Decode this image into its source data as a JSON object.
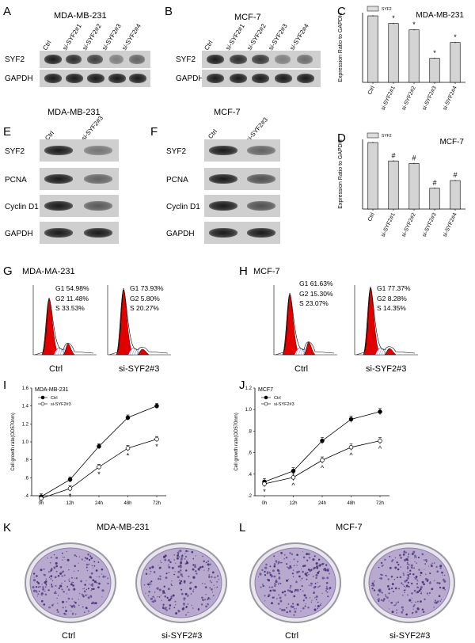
{
  "panels": {
    "A": {
      "letter": "A",
      "title": "MDA-MB-231",
      "lanes": [
        "Ctrl",
        "si-SYF2#1",
        "si-SYF2#2",
        "si-SYF2#3",
        "si-SYF2#4"
      ],
      "rows": [
        "SYF2",
        "GAPDH"
      ]
    },
    "B": {
      "letter": "B",
      "title": "MCF-7",
      "lanes": [
        "Ctrl",
        "si-SYF2#1",
        "si-SYF2#2",
        "si-SYF2#3",
        "si-SYF2#4"
      ],
      "rows": [
        "SYF2",
        "GAPDH"
      ]
    },
    "E": {
      "letter": "E",
      "title": "MDA-MB-231",
      "lanes": [
        "Ctrl",
        "si-SYF2#3"
      ],
      "rows": [
        "SYF2",
        "PCNA",
        "Cyclin D1",
        "GAPDH"
      ]
    },
    "F": {
      "letter": "F",
      "title": "MCF-7",
      "lanes": [
        "Ctrl",
        "si-SYF2#3"
      ],
      "rows": [
        "SYF2",
        "PCNA",
        "Cyclin D1",
        "GAPDH"
      ]
    },
    "G": {
      "letter": "G",
      "title": "MDA-MA-231",
      "ctrl_stats": [
        "G1 54.98%",
        "G2 11.48%",
        "S 33.53%"
      ],
      "si_stats": [
        "G1 73.93%",
        "G2 5.80%",
        "S 20.27%"
      ],
      "labels": [
        "Ctrl",
        "si-SYF2#3"
      ]
    },
    "H": {
      "letter": "H",
      "title": "MCF-7",
      "ctrl_stats": [
        "G1 61.63%",
        "G2 15.30%",
        "S 23.07%"
      ],
      "si_stats": [
        "G1 77.37%",
        "G2 8.28%",
        "S 14.35%"
      ],
      "labels": [
        "Ctrl",
        "si-SYF2#3"
      ]
    },
    "K": {
      "letter": "K",
      "title": "MDA-MB-231",
      "labels": [
        "Ctrl",
        "si-SYF2#3"
      ]
    },
    "L": {
      "letter": "L",
      "title": "MCF-7",
      "labels": [
        "Ctrl",
        "si-SYF2#3"
      ]
    },
    "C_letter": "C",
    "D_letter": "D",
    "I_letter": "I",
    "J_letter": "J"
  },
  "chart_data": [
    {
      "type": "bar",
      "panel": "C",
      "title": "MDA-MB-231",
      "legend": "SYF2",
      "ylabel": "Expression Ratio to GAPDH",
      "categories": [
        "Ctrl",
        "si-SYF2#1",
        "si-SYF2#2",
        "si-SYF2#3",
        "si-SYF2#4"
      ],
      "values": [
        1.05,
        0.93,
        0.83,
        0.38,
        0.63
      ],
      "errors": [
        0.01,
        0.01,
        0.01,
        0.01,
        0.01
      ],
      "marks": [
        "",
        "*",
        "*",
        "*",
        "*"
      ],
      "ylim": [
        0,
        1.1
      ]
    },
    {
      "type": "bar",
      "panel": "D",
      "title": "MCF-7",
      "legend": "SYF2",
      "ylabel": "Expression Ratio to GAPDH",
      "categories": [
        "Ctrl",
        "si-SYF2#1",
        "si-SYF2#2",
        "si-SYF2#3",
        "si-SYF2#4"
      ],
      "values": [
        1.05,
        0.76,
        0.72,
        0.33,
        0.45
      ],
      "errors": [
        0.01,
        0.01,
        0.01,
        0.01,
        0.01
      ],
      "marks": [
        "",
        "#",
        "#",
        "#",
        "#"
      ],
      "ylim": [
        0,
        1.1
      ]
    },
    {
      "type": "line",
      "panel": "I",
      "title": "MDA-MB-231",
      "ylabel": "Cell growth rate(OD570nm)",
      "x": [
        "0h",
        "12h",
        "24h",
        "48h",
        "72h"
      ],
      "yticks": [
        ".4",
        ".6",
        ".8",
        "1.0",
        "1.2",
        "1.4",
        "1.6"
      ],
      "ylim": [
        0.4,
        1.6
      ],
      "series": [
        {
          "name": "Ctrl",
          "values": [
            0.39,
            0.58,
            0.95,
            1.27,
            1.4
          ],
          "errors": [
            0.03,
            0.03,
            0.03,
            0.03,
            0.03
          ],
          "filled": true
        },
        {
          "name": "si-SYF2#3",
          "values": [
            0.37,
            0.48,
            0.72,
            0.93,
            1.03
          ],
          "errors": [
            0.03,
            0.03,
            0.03,
            0.03,
            0.03
          ],
          "filled": false
        }
      ],
      "marks": [
        "",
        "*",
        "*",
        "*",
        "*"
      ]
    },
    {
      "type": "line",
      "panel": "J",
      "title": "MCF7",
      "ylabel": "Cell growth rate(OD570nm)",
      "x": [
        "0h",
        "12h",
        "24h",
        "48h",
        "72h"
      ],
      "yticks": [
        ".2",
        ".4",
        ".6",
        ".8",
        "1.0",
        "1.2"
      ],
      "ylim": [
        0.2,
        1.2
      ],
      "series": [
        {
          "name": "Ctrl",
          "values": [
            0.33,
            0.43,
            0.71,
            0.91,
            0.98
          ],
          "errors": [
            0.03,
            0.03,
            0.03,
            0.03,
            0.03
          ],
          "filled": true
        },
        {
          "name": "si-SYF2#3",
          "values": [
            0.31,
            0.37,
            0.53,
            0.65,
            0.71
          ],
          "errors": [
            0.03,
            0.03,
            0.03,
            0.03,
            0.03
          ],
          "filled": false
        }
      ],
      "marks": [
        "*",
        "^",
        "^",
        "^",
        "^"
      ]
    }
  ]
}
